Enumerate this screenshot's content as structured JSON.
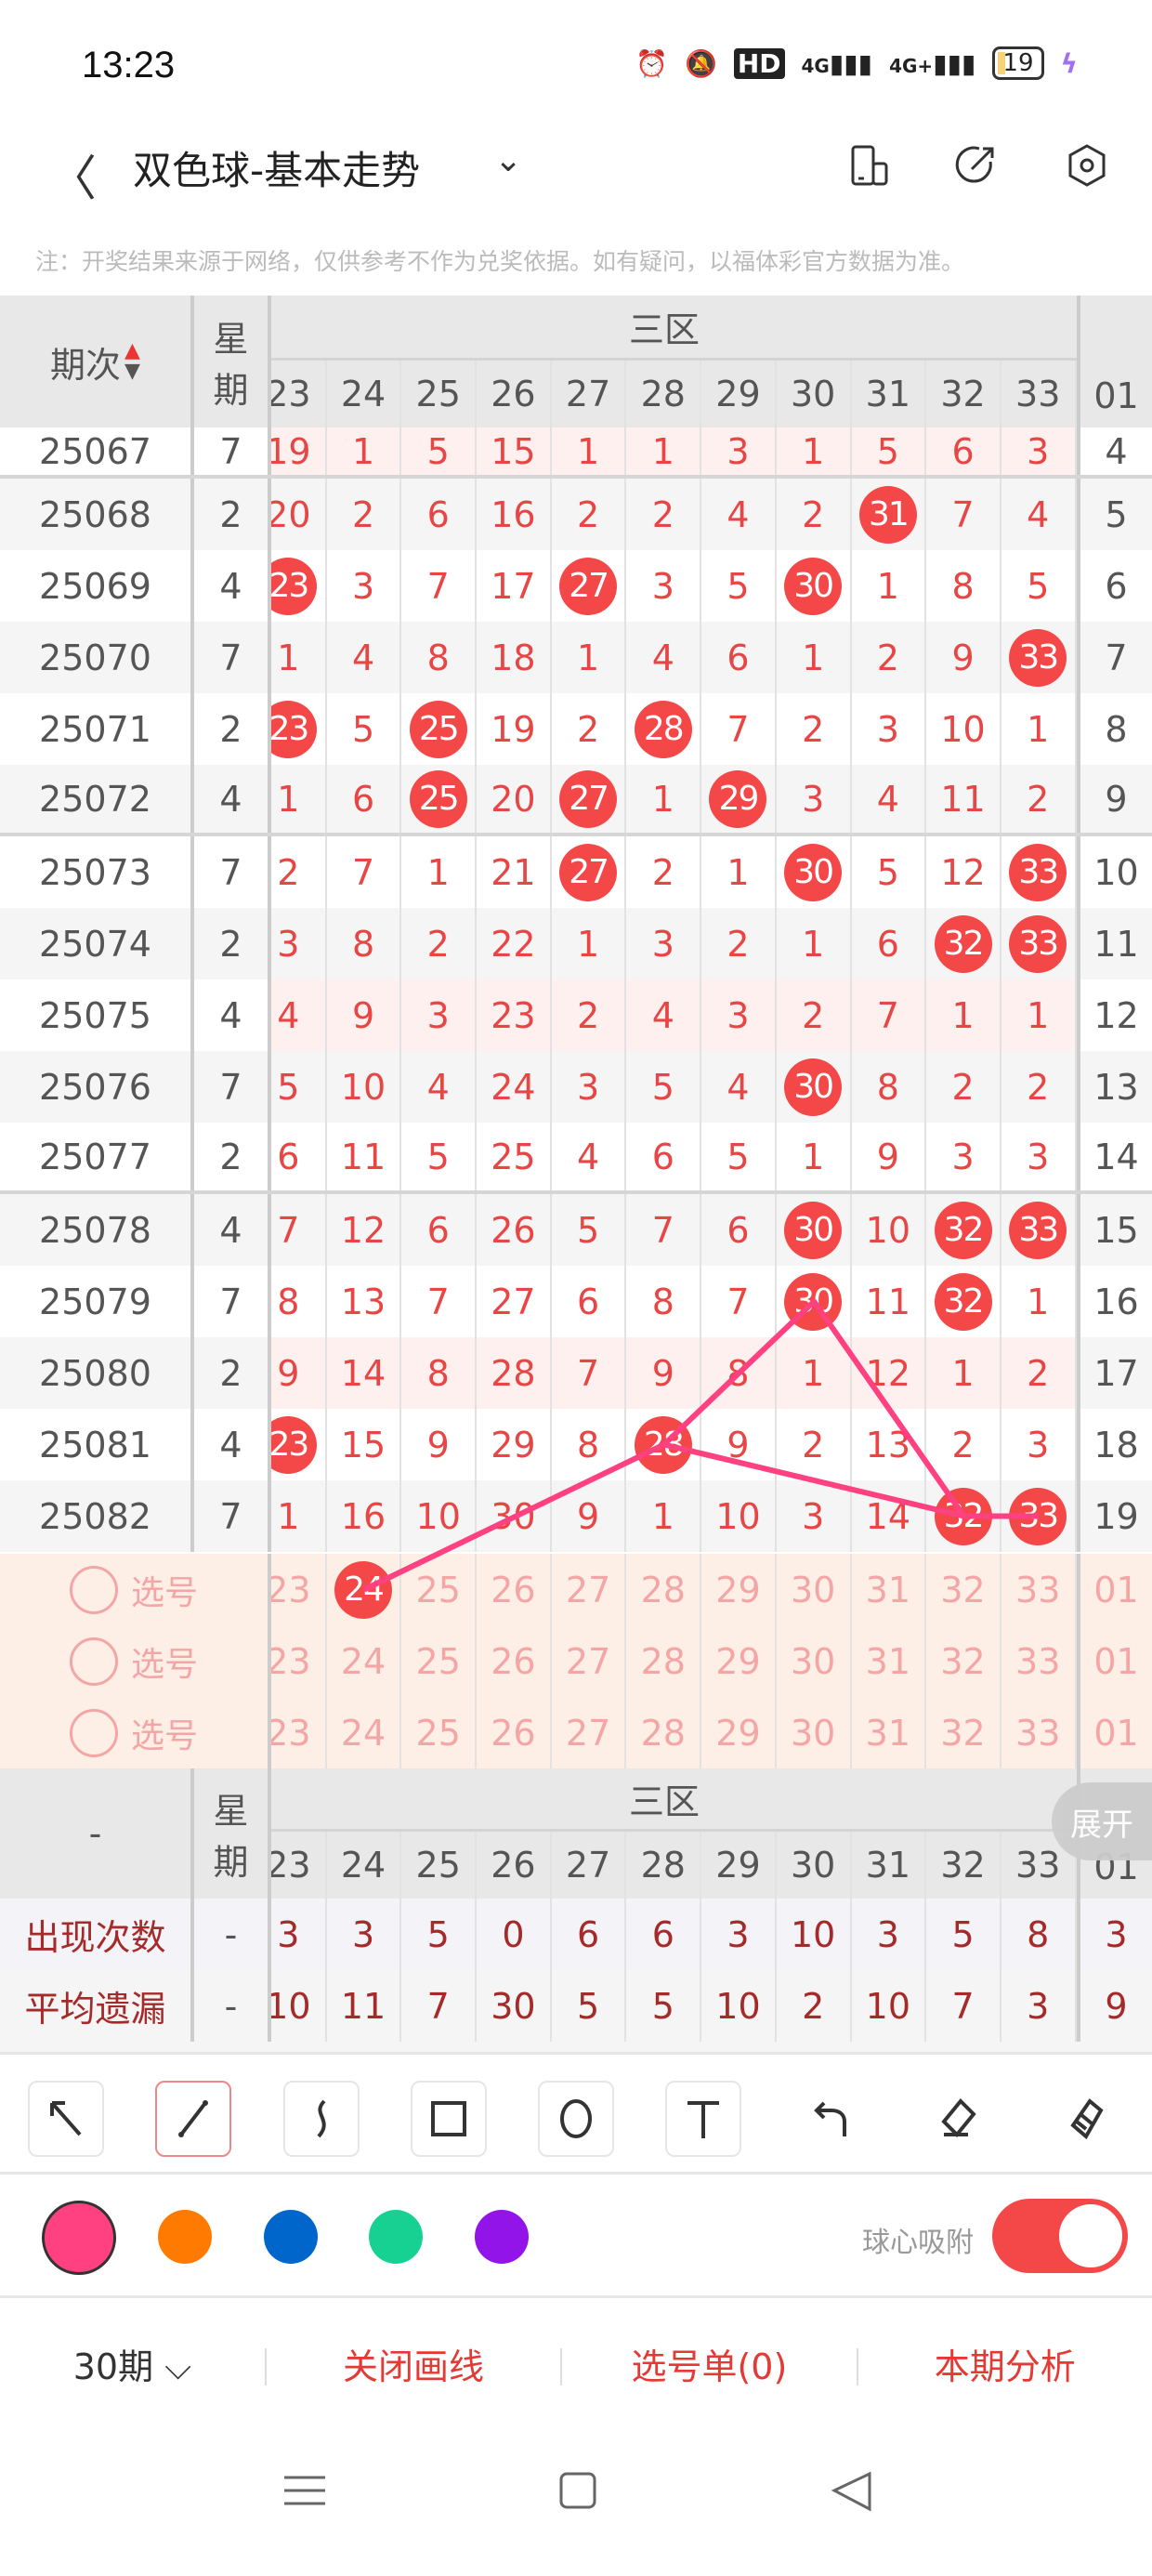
{
  "status_bar": {
    "time": "13:23",
    "network1": "4G",
    "network2": "4G+",
    "hd": "HD",
    "battery": "19"
  },
  "header": {
    "title": "双色球-基本走势"
  },
  "note": "注：开奖结果来源于网络，仅供参考不作为兑奖依据。如有疑问，以福体彩官方数据为准。",
  "table": {
    "period_header": "期次",
    "week_header_1": "星",
    "week_header_2": "期",
    "zone_header": "三区",
    "columns": [
      "23",
      "24",
      "25",
      "26",
      "27",
      "28",
      "29",
      "30",
      "31",
      "32",
      "33"
    ],
    "blue_column": "01",
    "rows": [
      {
        "period": "25067",
        "week": "7",
        "cells": [
          "19",
          "1",
          "5",
          "15",
          "1",
          "1",
          "3",
          "1",
          "5",
          "6",
          "3"
        ],
        "blue": "4",
        "hits": [],
        "pink": true
      },
      {
        "period": "25068",
        "week": "2",
        "cells": [
          "20",
          "2",
          "6",
          "16",
          "2",
          "2",
          "4",
          "2",
          "31",
          "7",
          "4"
        ],
        "blue": "5",
        "hits": [
          "31"
        ]
      },
      {
        "period": "25069",
        "week": "4",
        "cells": [
          "23",
          "3",
          "7",
          "17",
          "27",
          "3",
          "5",
          "30",
          "1",
          "8",
          "5"
        ],
        "blue": "6",
        "hits": [
          "23",
          "27",
          "30"
        ]
      },
      {
        "period": "25070",
        "week": "7",
        "cells": [
          "1",
          "4",
          "8",
          "18",
          "1",
          "4",
          "6",
          "1",
          "2",
          "9",
          "33"
        ],
        "blue": "7",
        "hits": [
          "33"
        ]
      },
      {
        "period": "25071",
        "week": "2",
        "cells": [
          "23",
          "5",
          "25",
          "19",
          "2",
          "28",
          "7",
          "2",
          "3",
          "10",
          "1"
        ],
        "blue": "8",
        "hits": [
          "23",
          "25",
          "28"
        ]
      },
      {
        "period": "25072",
        "week": "4",
        "cells": [
          "1",
          "6",
          "25",
          "20",
          "27",
          "1",
          "29",
          "3",
          "4",
          "11",
          "2"
        ],
        "blue": "9",
        "hits": [
          "25",
          "27",
          "29"
        ]
      },
      {
        "period": "25073",
        "week": "7",
        "cells": [
          "2",
          "7",
          "1",
          "21",
          "27",
          "2",
          "1",
          "30",
          "5",
          "12",
          "33"
        ],
        "blue": "10",
        "hits": [
          "27",
          "30",
          "33"
        ]
      },
      {
        "period": "25074",
        "week": "2",
        "cells": [
          "3",
          "8",
          "2",
          "22",
          "1",
          "3",
          "2",
          "1",
          "6",
          "32",
          "33"
        ],
        "blue": "11",
        "hits": [
          "32",
          "33"
        ]
      },
      {
        "period": "25075",
        "week": "4",
        "cells": [
          "4",
          "9",
          "3",
          "23",
          "2",
          "4",
          "3",
          "2",
          "7",
          "1",
          "1"
        ],
        "blue": "12",
        "hits": [],
        "pink": true
      },
      {
        "period": "25076",
        "week": "7",
        "cells": [
          "5",
          "10",
          "4",
          "24",
          "3",
          "5",
          "4",
          "30",
          "8",
          "2",
          "2"
        ],
        "blue": "13",
        "hits": [
          "30"
        ]
      },
      {
        "period": "25077",
        "week": "2",
        "cells": [
          "6",
          "11",
          "5",
          "25",
          "4",
          "6",
          "5",
          "1",
          "9",
          "3",
          "3"
        ],
        "blue": "14",
        "hits": []
      },
      {
        "period": "25078",
        "week": "4",
        "cells": [
          "7",
          "12",
          "6",
          "26",
          "5",
          "7",
          "6",
          "30",
          "10",
          "32",
          "33"
        ],
        "blue": "15",
        "hits": [
          "30",
          "32",
          "33"
        ]
      },
      {
        "period": "25079",
        "week": "7",
        "cells": [
          "8",
          "13",
          "7",
          "27",
          "6",
          "8",
          "7",
          "30",
          "11",
          "32",
          "1"
        ],
        "blue": "16",
        "hits": [
          "30",
          "32"
        ]
      },
      {
        "period": "25080",
        "week": "2",
        "cells": [
          "9",
          "14",
          "8",
          "28",
          "7",
          "9",
          "8",
          "1",
          "12",
          "1",
          "2"
        ],
        "blue": "17",
        "hits": [],
        "pink": true
      },
      {
        "period": "25081",
        "week": "4",
        "cells": [
          "23",
          "15",
          "9",
          "29",
          "8",
          "28",
          "9",
          "2",
          "13",
          "2",
          "3"
        ],
        "blue": "18",
        "hits": [
          "23",
          "28"
        ]
      },
      {
        "period": "25082",
        "week": "7",
        "cells": [
          "1",
          "16",
          "10",
          "30",
          "9",
          "1",
          "10",
          "3",
          "14",
          "32",
          "33"
        ],
        "blue": "19",
        "hits": [
          "32",
          "33"
        ]
      }
    ],
    "select_rows": [
      {
        "label": "选号",
        "selected": [
          "24"
        ]
      },
      {
        "label": "选号",
        "selected": []
      },
      {
        "label": "选号",
        "selected": []
      }
    ],
    "footer_header": {
      "period": "-",
      "week_1": "星",
      "week_2": "期",
      "zone": "三区",
      "expand": "展开"
    },
    "stats": [
      {
        "label": "出现次数",
        "week": "-",
        "cells": [
          "3",
          "3",
          "5",
          "0",
          "6",
          "6",
          "3",
          "10",
          "3",
          "5",
          "8"
        ],
        "blue": "3"
      },
      {
        "label": "平均遗漏",
        "week": "-",
        "cells": [
          "10",
          "11",
          "7",
          "30",
          "5",
          "5",
          "10",
          "2",
          "10",
          "7",
          "3"
        ],
        "blue": "9"
      }
    ]
  },
  "drawing": {
    "color": "#ff4081",
    "paths": [
      [
        {
          "row": "select-0",
          "col": "24"
        },
        {
          "row": "25081",
          "col": "28"
        },
        {
          "row": "25079",
          "col": "30"
        },
        {
          "row": "25082",
          "col": "32"
        },
        {
          "row": "25082",
          "col": "33"
        }
      ],
      [
        {
          "row": "25081",
          "col": "28"
        },
        {
          "row": "25082",
          "col": "32"
        }
      ]
    ]
  },
  "tools": [
    "arrow-tool",
    "line-tool",
    "curve-tool",
    "rectangle-tool",
    "circle-tool",
    "text-tool",
    "undo",
    "eraser",
    "clear"
  ],
  "active_tool": "line-tool",
  "colors": [
    "#ff4081",
    "#ff7a00",
    "#0066cc",
    "#17d193",
    "#9314e8"
  ],
  "selected_color": "#ff4081",
  "snap": {
    "label": "球心吸附",
    "on": true
  },
  "bottom_bar": {
    "periods": "30期",
    "close_draw": "关闭画线",
    "pick_list": "选号单(0)",
    "analysis": "本期分析"
  }
}
